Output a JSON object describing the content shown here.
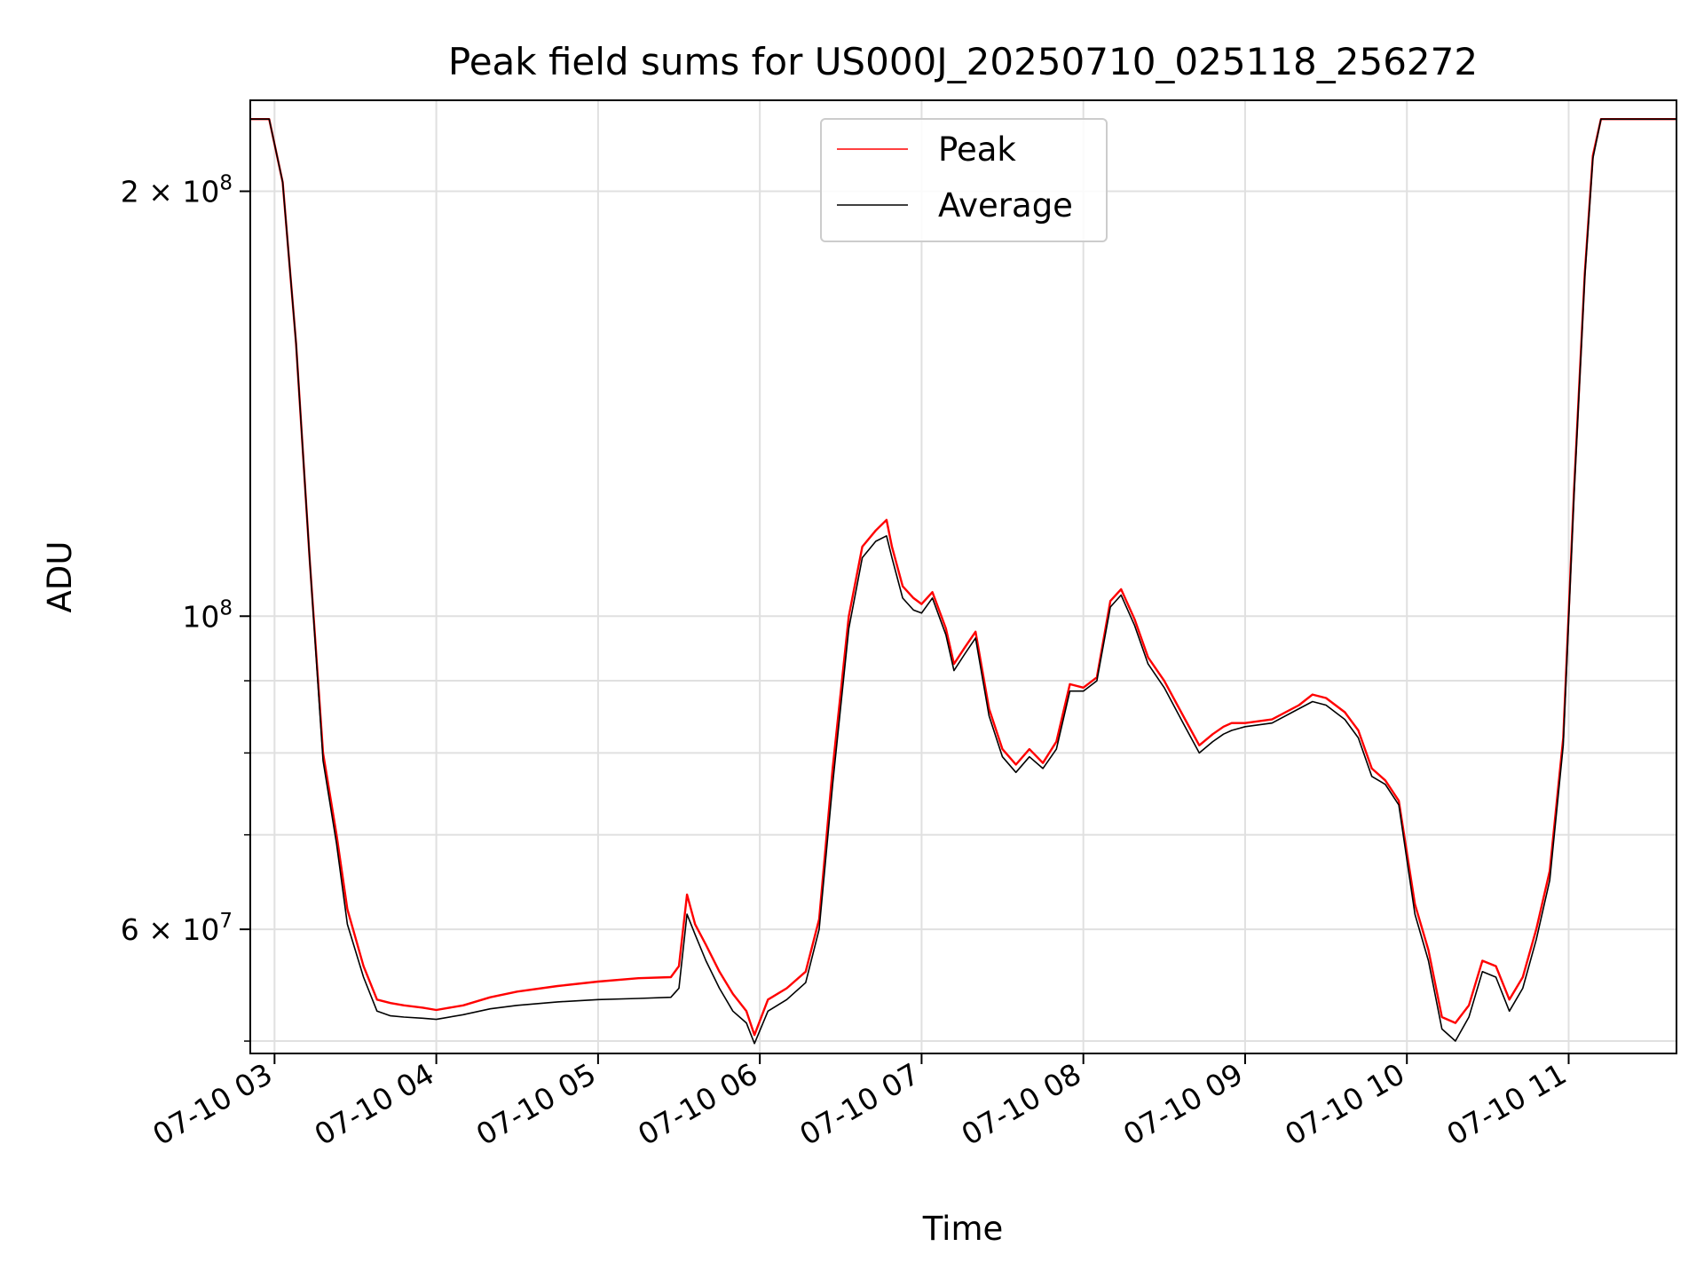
{
  "chart_data": {
    "type": "line",
    "title": "Peak field sums for US000J_20250710_025118_256272",
    "xlabel": "Time",
    "ylabel": "ADU",
    "y_scale": "log",
    "ylim": [
      49000000,
      232000000
    ],
    "xlim": [
      "07-10 02:51",
      "07-10 11:40"
    ],
    "x_ticks": [
      "07-10 03",
      "07-10 04",
      "07-10 05",
      "07-10 06",
      "07-10 07",
      "07-10 08",
      "07-10 09",
      "07-10 10",
      "07-10 11"
    ],
    "x_tick_values": [
      "07-10 03:00",
      "07-10 04:00",
      "07-10 05:00",
      "07-10 06:00",
      "07-10 07:00",
      "07-10 08:00",
      "07-10 09:00",
      "07-10 10:00",
      "07-10 11:00"
    ],
    "y_ticks": [
      {
        "value": 200000000,
        "mantissa": "2",
        "exponent": "8"
      },
      {
        "value": 100000000,
        "mantissa": "",
        "exponent": "8"
      },
      {
        "value": 60000000,
        "mantissa": "6",
        "exponent": "7"
      }
    ],
    "y_minor_ticks": [
      50000000,
      70000000,
      80000000,
      90000000
    ],
    "grid": true,
    "legend_position": "upper-center",
    "series": [
      {
        "name": "Peak",
        "color": "#ff0000",
        "x": [
          "07-10 02:51",
          "07-10 02:58",
          "07-10 03:03",
          "07-10 03:08",
          "07-10 03:13",
          "07-10 03:18",
          "07-10 03:23",
          "07-10 03:27",
          "07-10 03:33",
          "07-10 03:38",
          "07-10 03:43",
          "07-10 03:48",
          "07-10 03:55",
          "07-10 04:00",
          "07-10 04:10",
          "07-10 04:20",
          "07-10 04:30",
          "07-10 04:45",
          "07-10 05:00",
          "07-10 05:15",
          "07-10 05:27",
          "07-10 05:30",
          "07-10 05:33",
          "07-10 05:36",
          "07-10 05:40",
          "07-10 05:45",
          "07-10 05:50",
          "07-10 05:55",
          "07-10 05:58",
          "07-10 06:03",
          "07-10 06:10",
          "07-10 06:17",
          "07-10 06:22",
          "07-10 06:27",
          "07-10 06:33",
          "07-10 06:38",
          "07-10 06:43",
          "07-10 06:47",
          "07-10 06:49",
          "07-10 06:53",
          "07-10 06:57",
          "07-10 07:00",
          "07-10 07:04",
          "07-10 07:09",
          "07-10 07:12",
          "07-10 07:16",
          "07-10 07:20",
          "07-10 07:25",
          "07-10 07:30",
          "07-10 07:35",
          "07-10 07:40",
          "07-10 07:45",
          "07-10 07:50",
          "07-10 07:55",
          "07-10 08:00",
          "07-10 08:05",
          "07-10 08:10",
          "07-10 08:14",
          "07-10 08:19",
          "07-10 08:24",
          "07-10 08:30",
          "07-10 08:37",
          "07-10 08:43",
          "07-10 08:48",
          "07-10 08:52",
          "07-10 08:55",
          "07-10 09:00",
          "07-10 09:10",
          "07-10 09:20",
          "07-10 09:25",
          "07-10 09:30",
          "07-10 09:37",
          "07-10 09:42",
          "07-10 09:47",
          "07-10 09:52",
          "07-10 09:57",
          "07-10 10:03",
          "07-10 10:08",
          "07-10 10:13",
          "07-10 10:18",
          "07-10 10:23",
          "07-10 10:28",
          "07-10 10:33",
          "07-10 10:38",
          "07-10 10:43",
          "07-10 10:48",
          "07-10 10:53",
          "07-10 10:58",
          "07-10 11:02",
          "07-10 11:06",
          "07-10 11:09",
          "07-10 11:12",
          "07-10 11:15",
          "07-10 11:40"
        ],
        "values": [
          225000000,
          225000000,
          203000000,
          156000000,
          110000000,
          80000000,
          70000000,
          62000000,
          56500000,
          53500000,
          53200000,
          53000000,
          52800000,
          52600000,
          53000000,
          53700000,
          54200000,
          54700000,
          55100000,
          55400000,
          55500000,
          56500000,
          63500000,
          60500000,
          58500000,
          56000000,
          54000000,
          52500000,
          50500000,
          53500000,
          54500000,
          56000000,
          61000000,
          78000000,
          100000000,
          112000000,
          115000000,
          117000000,
          112000000,
          105000000,
          103000000,
          102000000,
          104000000,
          98000000,
          92500000,
          95000000,
          97500000,
          86000000,
          80500000,
          78500000,
          80500000,
          78700000,
          81500000,
          89500000,
          89000000,
          90500000,
          102500000,
          104500000,
          99500000,
          93500000,
          90000000,
          85000000,
          81000000,
          82500000,
          83500000,
          84000000,
          84000000,
          84500000,
          86500000,
          88000000,
          87500000,
          85500000,
          83000000,
          78000000,
          76500000,
          74000000,
          62500000,
          58000000,
          52000000,
          51500000,
          53000000,
          57000000,
          56500000,
          53500000,
          55500000,
          60000000,
          66000000,
          82000000,
          123000000,
          175000000,
          212000000,
          225000000,
          225000000,
          225000000
        ]
      },
      {
        "name": "Average",
        "color": "#000000",
        "x": [
          "07-10 02:51",
          "07-10 02:58",
          "07-10 03:03",
          "07-10 03:08",
          "07-10 03:13",
          "07-10 03:18",
          "07-10 03:23",
          "07-10 03:27",
          "07-10 03:33",
          "07-10 03:38",
          "07-10 03:43",
          "07-10 03:48",
          "07-10 03:55",
          "07-10 04:00",
          "07-10 04:10",
          "07-10 04:20",
          "07-10 04:30",
          "07-10 04:45",
          "07-10 05:00",
          "07-10 05:15",
          "07-10 05:27",
          "07-10 05:30",
          "07-10 05:33",
          "07-10 05:36",
          "07-10 05:40",
          "07-10 05:45",
          "07-10 05:50",
          "07-10 05:55",
          "07-10 05:58",
          "07-10 06:03",
          "07-10 06:10",
          "07-10 06:17",
          "07-10 06:22",
          "07-10 06:27",
          "07-10 06:33",
          "07-10 06:38",
          "07-10 06:43",
          "07-10 06:47",
          "07-10 06:49",
          "07-10 06:53",
          "07-10 06:57",
          "07-10 07:00",
          "07-10 07:04",
          "07-10 07:09",
          "07-10 07:12",
          "07-10 07:16",
          "07-10 07:20",
          "07-10 07:25",
          "07-10 07:30",
          "07-10 07:35",
          "07-10 07:40",
          "07-10 07:45",
          "07-10 07:50",
          "07-10 07:55",
          "07-10 08:00",
          "07-10 08:05",
          "07-10 08:10",
          "07-10 08:14",
          "07-10 08:19",
          "07-10 08:24",
          "07-10 08:30",
          "07-10 08:37",
          "07-10 08:43",
          "07-10 08:48",
          "07-10 08:52",
          "07-10 08:55",
          "07-10 09:00",
          "07-10 09:10",
          "07-10 09:20",
          "07-10 09:25",
          "07-10 09:30",
          "07-10 09:37",
          "07-10 09:42",
          "07-10 09:47",
          "07-10 09:52",
          "07-10 09:57",
          "07-10 10:03",
          "07-10 10:08",
          "07-10 10:13",
          "07-10 10:18",
          "07-10 10:23",
          "07-10 10:28",
          "07-10 10:33",
          "07-10 10:38",
          "07-10 10:43",
          "07-10 10:48",
          "07-10 10:53",
          "07-10 10:58",
          "07-10 11:02",
          "07-10 11:06",
          "07-10 11:09",
          "07-10 11:12",
          "07-10 11:15",
          "07-10 11:40"
        ],
        "values": [
          225000000,
          225000000,
          203000000,
          156000000,
          110000000,
          79000000,
          69000000,
          60500000,
          55500000,
          52500000,
          52100000,
          52000000,
          51900000,
          51800000,
          52200000,
          52700000,
          53000000,
          53300000,
          53500000,
          53600000,
          53700000,
          54500000,
          61500000,
          59500000,
          57000000,
          54500000,
          52500000,
          51500000,
          49800000,
          52500000,
          53500000,
          55000000,
          60000000,
          76000000,
          98000000,
          110000000,
          113000000,
          114000000,
          110000000,
          103000000,
          101000000,
          100500000,
          103000000,
          97000000,
          91500000,
          94000000,
          96500000,
          85000000,
          79500000,
          77500000,
          79500000,
          78000000,
          80500000,
          88500000,
          88500000,
          90000000,
          101500000,
          103500000,
          98500000,
          92500000,
          89000000,
          84000000,
          80000000,
          81500000,
          82500000,
          83000000,
          83500000,
          84000000,
          86000000,
          87000000,
          86500000,
          84500000,
          82000000,
          77000000,
          76000000,
          73500000,
          61500000,
          57000000,
          51000000,
          50000000,
          52000000,
          56000000,
          55500000,
          52500000,
          54500000,
          59000000,
          65000000,
          81000000,
          122000000,
          174000000,
          211000000,
          225000000,
          225000000,
          225000000
        ]
      }
    ]
  }
}
